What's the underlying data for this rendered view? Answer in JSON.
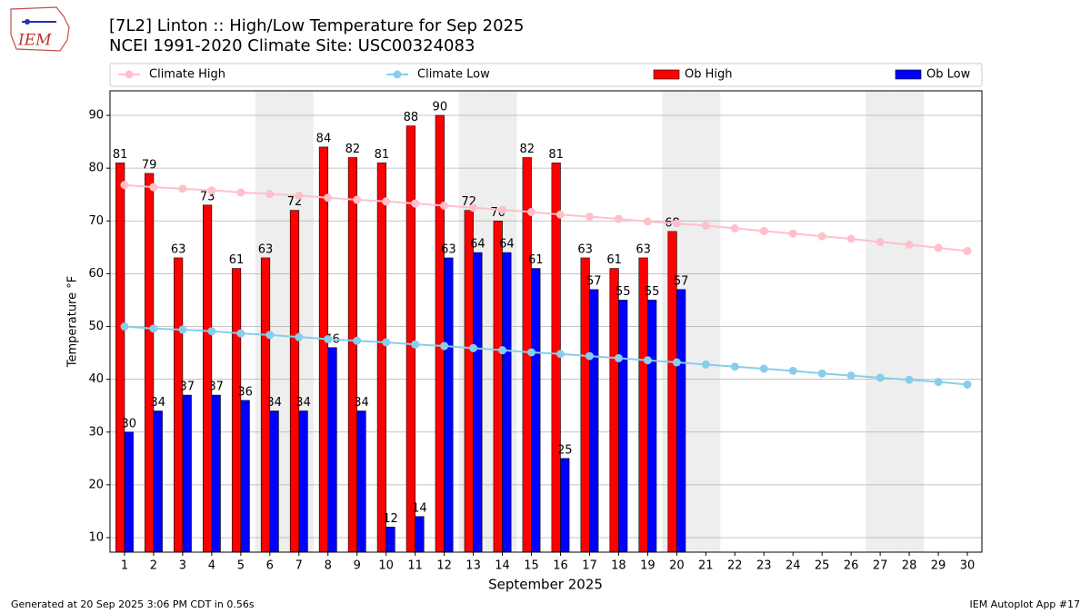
{
  "logo_text": "IEM",
  "footer_left": "Generated at 20 Sep 2025 3:06 PM CDT in 0.56s",
  "footer_right": "IEM Autoplot App #17",
  "chart_data": {
    "type": "bar",
    "title": "[7L2] Linton :: High/Low Temperature for Sep 2025",
    "subtitle": "NCEI 1991-2020 Climate Site: USC00324083",
    "xlabel": "September 2025",
    "ylabel": "Temperature °F",
    "x": [
      1,
      2,
      3,
      4,
      5,
      6,
      7,
      8,
      9,
      10,
      11,
      12,
      13,
      14,
      15,
      16,
      17,
      18,
      19,
      20,
      21,
      22,
      23,
      24,
      25,
      26,
      27,
      28,
      29,
      30
    ],
    "xlim": [
      0.5,
      30.5
    ],
    "xticks": [
      1,
      2,
      3,
      4,
      5,
      6,
      7,
      8,
      9,
      10,
      11,
      12,
      13,
      14,
      15,
      16,
      17,
      18,
      19,
      20,
      21,
      22,
      23,
      24,
      25,
      26,
      27,
      28,
      29,
      30
    ],
    "ylim": [
      7.25,
      94.65
    ],
    "yticks": [
      10,
      20,
      30,
      40,
      50,
      60,
      70,
      80,
      90
    ],
    "grid": true,
    "weekend_days": [
      6,
      7,
      13,
      14,
      20,
      21,
      27,
      28
    ],
    "series": [
      {
        "name": "Climate High",
        "type": "line",
        "color": "#ffc0cb",
        "values": [
          76.8,
          76.4,
          76.1,
          75.8,
          75.4,
          75.1,
          74.8,
          74.4,
          74.0,
          73.7,
          73.3,
          72.9,
          72.5,
          72.1,
          71.7,
          71.2,
          70.8,
          70.4,
          69.9,
          69.5,
          69.1,
          68.6,
          68.1,
          67.6,
          67.1,
          66.6,
          66.0,
          65.5,
          64.9,
          64.3
        ]
      },
      {
        "name": "Climate Low",
        "type": "line",
        "color": "#87ceeb",
        "values": [
          50.0,
          49.6,
          49.4,
          49.1,
          48.7,
          48.4,
          48.0,
          47.6,
          47.3,
          47.0,
          46.6,
          46.3,
          45.9,
          45.5,
          45.1,
          44.8,
          44.4,
          44.0,
          43.6,
          43.2,
          42.8,
          42.4,
          42.0,
          41.6,
          41.1,
          40.7,
          40.3,
          39.9,
          39.5,
          39.0
        ]
      },
      {
        "name": "Ob High",
        "type": "bar",
        "color": "#ff0000",
        "values": [
          81,
          79,
          63,
          73,
          61,
          63,
          72,
          84,
          82,
          81,
          88,
          90,
          72,
          70,
          82,
          81,
          63,
          61,
          63,
          68,
          null,
          null,
          null,
          null,
          null,
          null,
          null,
          null,
          null,
          null
        ]
      },
      {
        "name": "Ob Low",
        "type": "bar",
        "color": "#0000ff",
        "values": [
          30,
          34,
          37,
          37,
          36,
          34,
          34,
          46,
          34,
          12,
          14,
          63,
          64,
          64,
          61,
          25,
          57,
          55,
          55,
          57,
          null,
          null,
          null,
          null,
          null,
          null,
          null,
          null,
          null,
          null
        ]
      }
    ]
  }
}
